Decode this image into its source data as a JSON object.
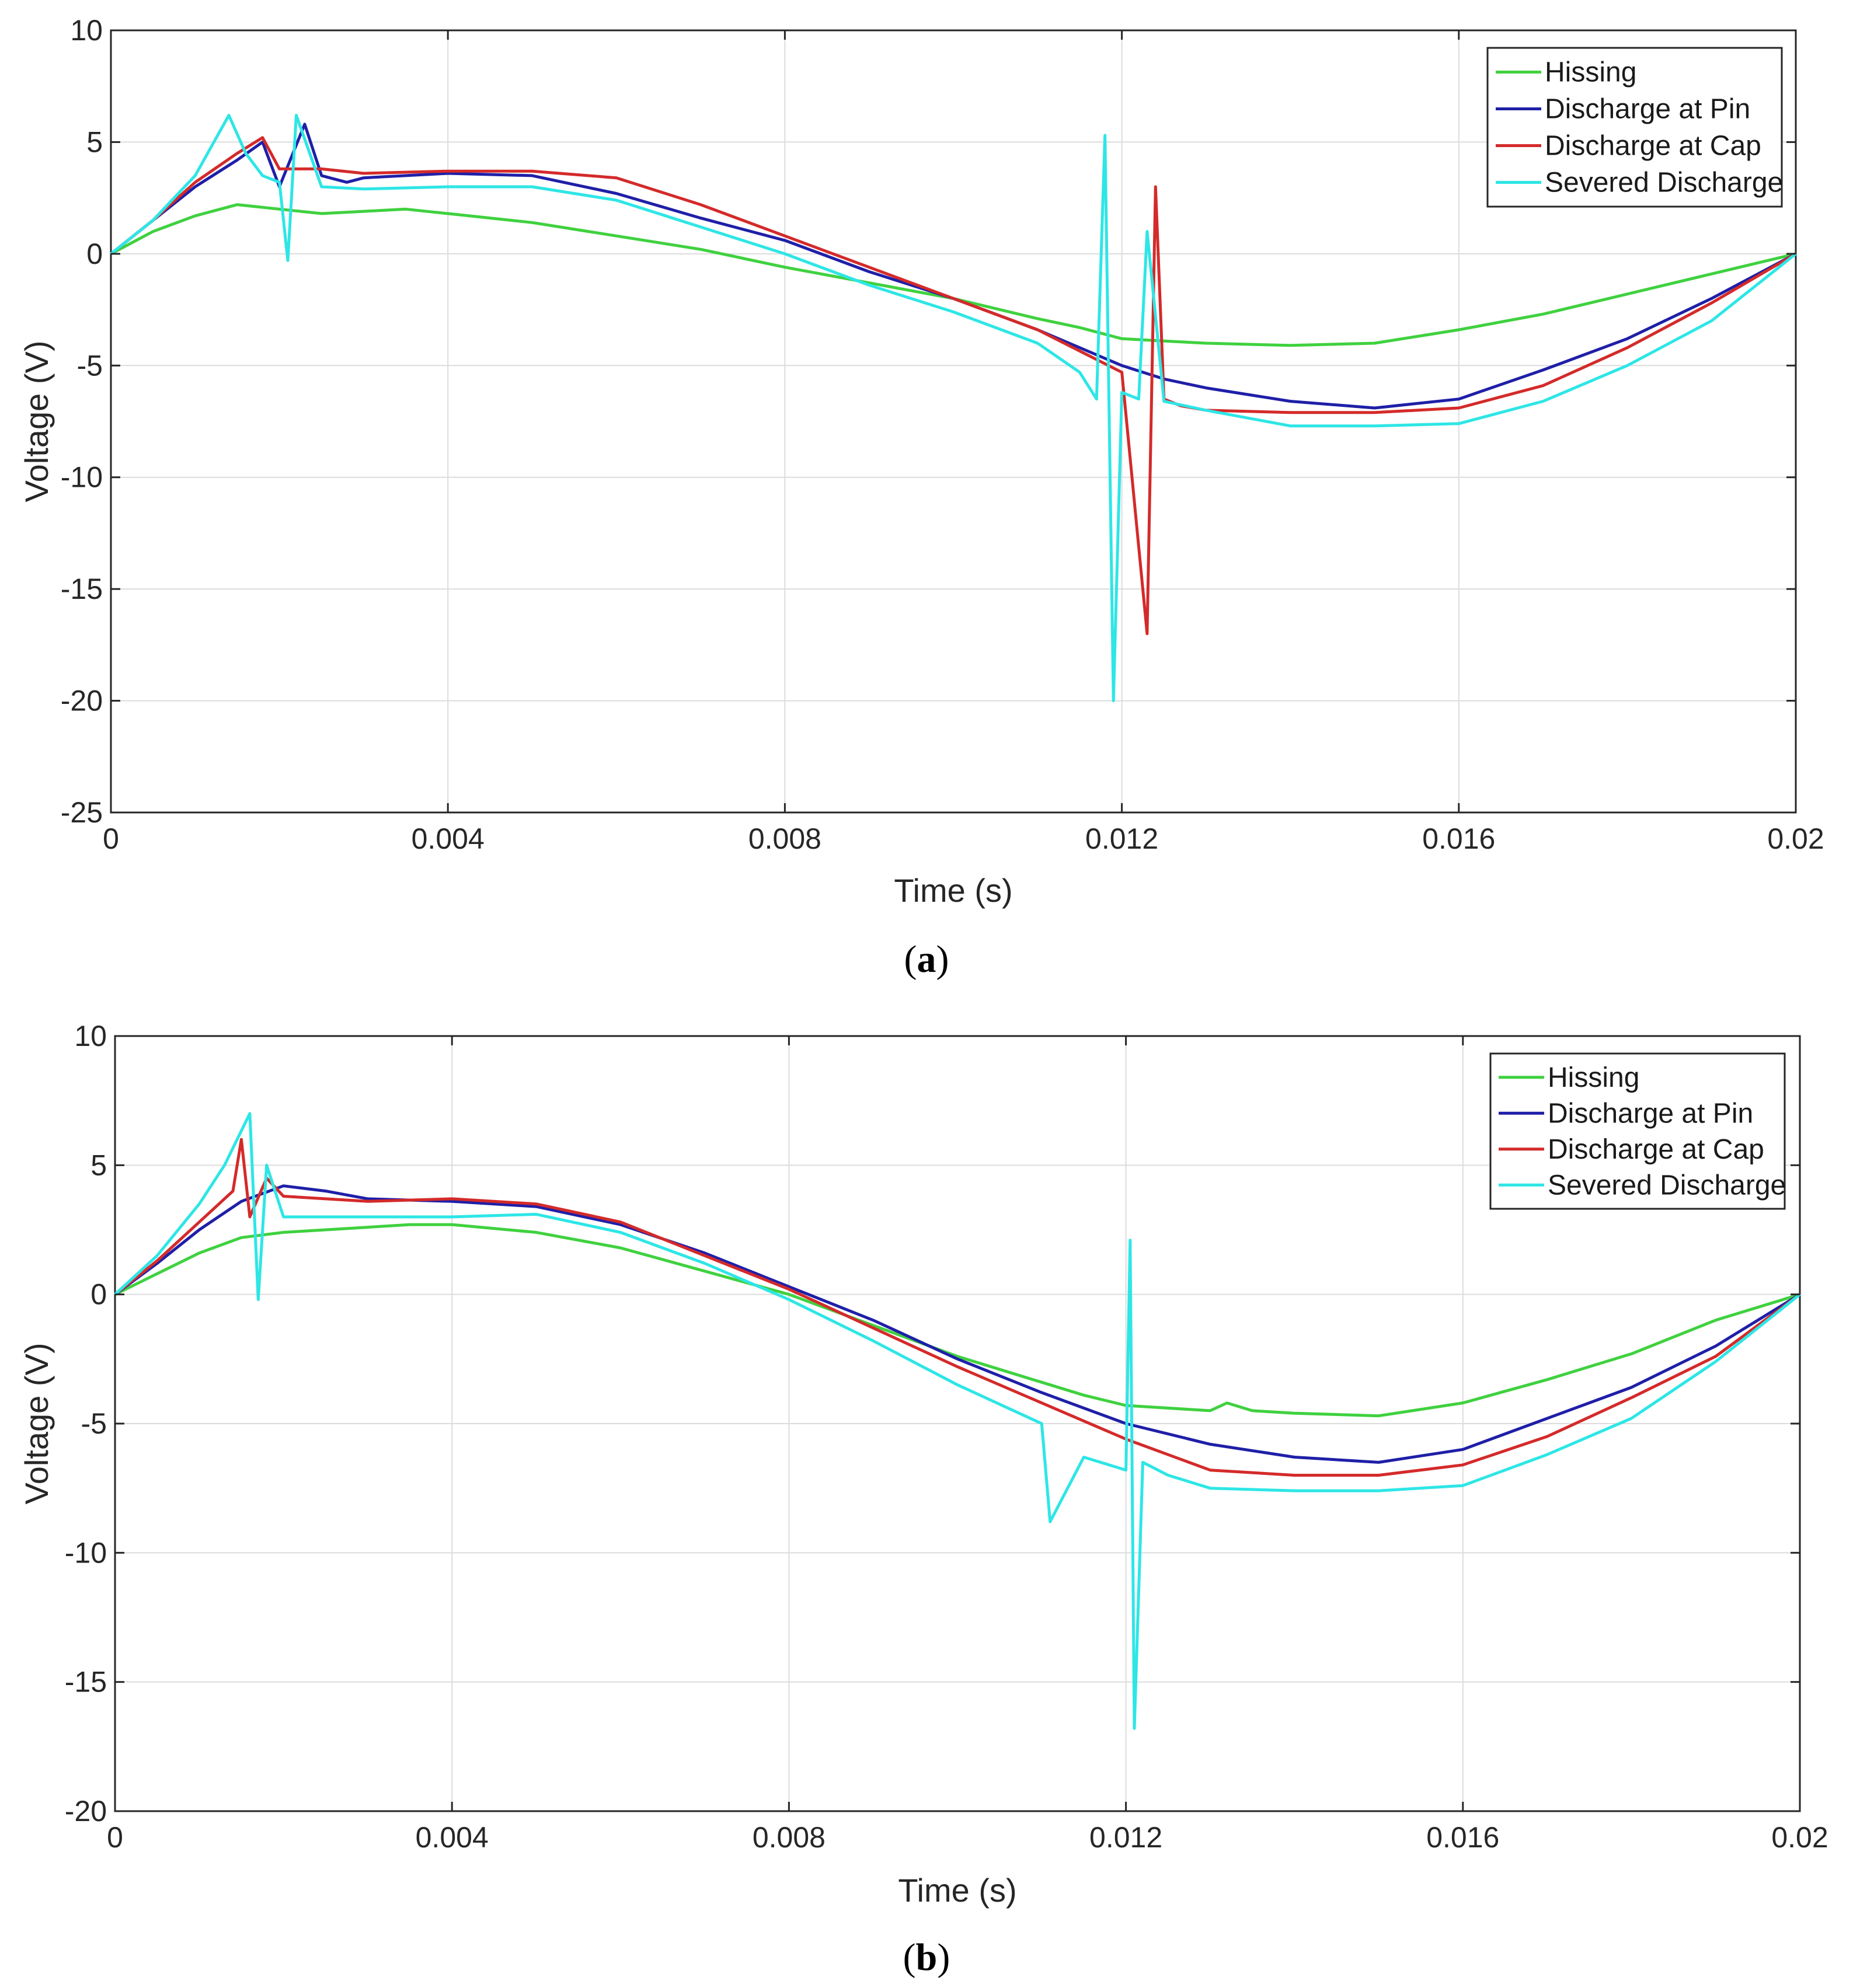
{
  "chart_data": [
    {
      "type": "line",
      "caption_open": "(",
      "caption_letter": "a",
      "caption_close": ")",
      "xlabel": "Time (s)",
      "ylabel": "Voltage (V)",
      "xlim": [
        0,
        0.02
      ],
      "ylim": [
        -25,
        10
      ],
      "xticks": [
        0,
        0.004,
        0.008,
        0.012,
        0.016,
        0.02
      ],
      "xtick_labels": [
        "0",
        "0.004",
        "0.008",
        "0.012",
        "0.016",
        "0.02"
      ],
      "yticks": [
        10,
        5,
        0,
        -5,
        -10,
        -15,
        -20,
        -25
      ],
      "ytick_labels": [
        "10",
        "5",
        "0",
        "-5",
        "-10",
        "-15",
        "-20",
        "-25"
      ],
      "grid": true,
      "legend_position": "top-right",
      "series": [
        {
          "name": "Hissing",
          "color": "#3fd13f",
          "x": [
            0,
            0.0005,
            0.001,
            0.0015,
            0.002,
            0.0025,
            0.003,
            0.0035,
            0.004,
            0.005,
            0.006,
            0.007,
            0.008,
            0.009,
            0.01,
            0.011,
            0.0115,
            0.012,
            0.0125,
            0.013,
            0.014,
            0.015,
            0.016,
            0.017,
            0.018,
            0.019,
            0.02
          ],
          "y": [
            0,
            1.0,
            1.7,
            2.2,
            2.0,
            1.8,
            1.9,
            2.0,
            1.8,
            1.4,
            0.8,
            0.2,
            -0.6,
            -1.3,
            -2.0,
            -2.9,
            -3.3,
            -3.8,
            -3.9,
            -4.0,
            -4.1,
            -4.0,
            -3.4,
            -2.7,
            -1.8,
            -0.9,
            0
          ]
        },
        {
          "name": "Discharge at Pin",
          "color": "#1f1fa8",
          "x": [
            0,
            0.0005,
            0.001,
            0.0015,
            0.0018,
            0.002,
            0.0023,
            0.0025,
            0.0028,
            0.003,
            0.004,
            0.005,
            0.006,
            0.007,
            0.008,
            0.009,
            0.01,
            0.011,
            0.012,
            0.0125,
            0.013,
            0.014,
            0.015,
            0.016,
            0.017,
            0.018,
            0.019,
            0.02
          ],
          "y": [
            0,
            1.5,
            3.0,
            4.2,
            5.0,
            3.0,
            5.8,
            3.5,
            3.2,
            3.4,
            3.6,
            3.5,
            2.7,
            1.6,
            0.6,
            -0.8,
            -2.0,
            -3.4,
            -5.0,
            -5.6,
            -6.0,
            -6.6,
            -6.9,
            -6.5,
            -5.2,
            -3.8,
            -2.0,
            0
          ]
        },
        {
          "name": "Discharge at Cap",
          "color": "#d42a2a",
          "x": [
            0,
            0.0005,
            0.001,
            0.0015,
            0.0018,
            0.002,
            0.0025,
            0.003,
            0.004,
            0.005,
            0.006,
            0.007,
            0.008,
            0.009,
            0.01,
            0.011,
            0.012,
            0.0123,
            0.0124,
            0.0125,
            0.0127,
            0.013,
            0.014,
            0.015,
            0.016,
            0.017,
            0.018,
            0.019,
            0.02
          ],
          "y": [
            0,
            1.5,
            3.2,
            4.5,
            5.2,
            3.8,
            3.8,
            3.6,
            3.7,
            3.7,
            3.4,
            2.2,
            0.8,
            -0.6,
            -2.0,
            -3.4,
            -5.3,
            -17.0,
            3.0,
            -6.5,
            -6.8,
            -7.0,
            -7.1,
            -7.1,
            -6.9,
            -5.9,
            -4.2,
            -2.2,
            0
          ]
        },
        {
          "name": "Severed Discharge",
          "color": "#2ee6e6",
          "x": [
            0,
            0.0005,
            0.001,
            0.0014,
            0.0016,
            0.0018,
            0.002,
            0.0021,
            0.0022,
            0.0025,
            0.003,
            0.004,
            0.005,
            0.006,
            0.007,
            0.008,
            0.009,
            0.01,
            0.011,
            0.0115,
            0.0117,
            0.0118,
            0.0119,
            0.012,
            0.0122,
            0.0123,
            0.0125,
            0.013,
            0.014,
            0.015,
            0.016,
            0.017,
            0.018,
            0.019,
            0.02
          ],
          "y": [
            0,
            1.5,
            3.5,
            6.2,
            4.5,
            3.5,
            3.2,
            -0.3,
            6.2,
            3.0,
            2.9,
            3.0,
            3.0,
            2.4,
            1.2,
            0.0,
            -1.4,
            -2.6,
            -4.0,
            -5.3,
            -6.5,
            5.3,
            -20.0,
            -6.2,
            -6.5,
            1.0,
            -6.6,
            -7.0,
            -7.7,
            -7.7,
            -7.6,
            -6.6,
            -5.0,
            -3.0,
            0
          ]
        }
      ],
      "legend_entries": [
        "Hissing",
        "Discharge at Pin",
        "Discharge at Cap",
        "Severed Discharge"
      ]
    },
    {
      "type": "line",
      "caption_open": "(",
      "caption_letter": "b",
      "caption_close": ")",
      "xlabel": "Time (s)",
      "ylabel": "Voltage (V)",
      "xlim": [
        0,
        0.02
      ],
      "ylim": [
        -20,
        10
      ],
      "xticks": [
        0,
        0.004,
        0.008,
        0.012,
        0.016,
        0.02
      ],
      "xtick_labels": [
        "0",
        "0.004",
        "0.008",
        "0.012",
        "0.016",
        "0.02"
      ],
      "yticks": [
        10,
        5,
        0,
        -5,
        -10,
        -15,
        -20
      ],
      "ytick_labels": [
        "10",
        "5",
        "0",
        "-5",
        "-10",
        "-15",
        "-20"
      ],
      "grid": true,
      "legend_position": "top-right",
      "series": [
        {
          "name": "Hissing",
          "color": "#3fd13f",
          "x": [
            0,
            0.0005,
            0.001,
            0.0015,
            0.002,
            0.0025,
            0.003,
            0.0035,
            0.004,
            0.005,
            0.006,
            0.007,
            0.008,
            0.009,
            0.01,
            0.011,
            0.0115,
            0.012,
            0.013,
            0.0132,
            0.0135,
            0.014,
            0.015,
            0.016,
            0.017,
            0.018,
            0.019,
            0.02
          ],
          "y": [
            0,
            0.8,
            1.6,
            2.2,
            2.4,
            2.5,
            2.6,
            2.7,
            2.7,
            2.4,
            1.8,
            0.9,
            0.0,
            -1.2,
            -2.4,
            -3.4,
            -3.9,
            -4.3,
            -4.5,
            -4.2,
            -4.5,
            -4.6,
            -4.7,
            -4.2,
            -3.3,
            -2.3,
            -1.0,
            0
          ]
        },
        {
          "name": "Discharge at Pin",
          "color": "#1f1fa8",
          "x": [
            0,
            0.0005,
            0.001,
            0.0015,
            0.002,
            0.0025,
            0.003,
            0.004,
            0.005,
            0.006,
            0.007,
            0.008,
            0.009,
            0.01,
            0.011,
            0.012,
            0.013,
            0.014,
            0.015,
            0.016,
            0.017,
            0.018,
            0.019,
            0.02
          ],
          "y": [
            0,
            1.2,
            2.5,
            3.6,
            4.2,
            4.0,
            3.7,
            3.6,
            3.4,
            2.7,
            1.6,
            0.3,
            -1.0,
            -2.5,
            -3.8,
            -5.0,
            -5.8,
            -6.3,
            -6.5,
            -6.0,
            -4.8,
            -3.6,
            -2.0,
            0
          ]
        },
        {
          "name": "Discharge at Cap",
          "color": "#d42a2a",
          "x": [
            0,
            0.0005,
            0.001,
            0.0014,
            0.0015,
            0.0016,
            0.0018,
            0.002,
            0.0025,
            0.003,
            0.004,
            0.005,
            0.006,
            0.007,
            0.008,
            0.009,
            0.01,
            0.011,
            0.012,
            0.013,
            0.014,
            0.015,
            0.016,
            0.017,
            0.018,
            0.019,
            0.02
          ],
          "y": [
            0,
            1.3,
            2.8,
            4.0,
            6.0,
            3.0,
            4.5,
            3.8,
            3.7,
            3.6,
            3.7,
            3.5,
            2.8,
            1.5,
            0.2,
            -1.3,
            -2.8,
            -4.2,
            -5.6,
            -6.8,
            -7.0,
            -7.0,
            -6.6,
            -5.5,
            -4.0,
            -2.4,
            0
          ]
        },
        {
          "name": "Severed Discharge",
          "color": "#2ee6e6",
          "x": [
            0,
            0.0005,
            0.001,
            0.0013,
            0.0016,
            0.0017,
            0.0018,
            0.002,
            0.0025,
            0.003,
            0.004,
            0.005,
            0.006,
            0.007,
            0.008,
            0.009,
            0.01,
            0.011,
            0.0111,
            0.0115,
            0.012,
            0.01205,
            0.0121,
            0.0122,
            0.0125,
            0.013,
            0.014,
            0.015,
            0.016,
            0.017,
            0.018,
            0.019,
            0.02
          ],
          "y": [
            0,
            1.5,
            3.5,
            5.0,
            7.0,
            -0.2,
            5.0,
            3.0,
            3.0,
            3.0,
            3.0,
            3.1,
            2.4,
            1.2,
            -0.2,
            -1.8,
            -3.5,
            -5.0,
            -8.8,
            -6.3,
            -6.8,
            2.1,
            -16.8,
            -6.5,
            -7.0,
            -7.5,
            -7.6,
            -7.6,
            -7.4,
            -6.2,
            -4.8,
            -2.6,
            0
          ]
        }
      ],
      "legend_entries": [
        "Hissing",
        "Discharge at Pin",
        "Discharge at Cap",
        "Severed Discharge"
      ]
    }
  ]
}
